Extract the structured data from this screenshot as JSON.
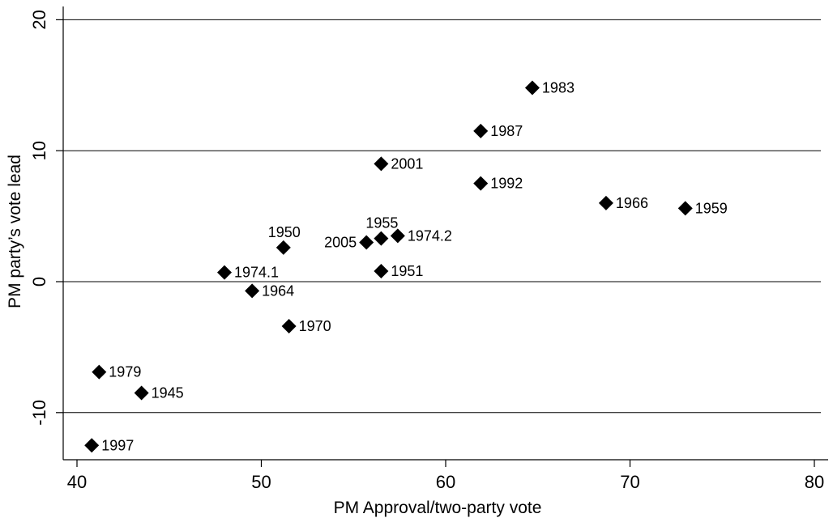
{
  "chart_data": {
    "type": "scatter",
    "title": "",
    "xlabel": "PM Approval/two-party vote",
    "ylabel": "PM party’s vote lead",
    "xlim": [
      39.5,
      80.5
    ],
    "ylim": [
      -13.5,
      21
    ],
    "xticks": [
      40,
      50,
      60,
      70,
      80
    ],
    "yticks": [
      -10,
      0,
      10,
      20
    ],
    "grid": "horizontal",
    "marker": "diamond",
    "marker_color": "#000000",
    "points": [
      {
        "label": "1983",
        "x": 64.7,
        "y": 14.8,
        "label_pos": "right"
      },
      {
        "label": "1987",
        "x": 61.9,
        "y": 11.5,
        "label_pos": "right"
      },
      {
        "label": "2001",
        "x": 56.5,
        "y": 9.0,
        "label_pos": "right"
      },
      {
        "label": "1992",
        "x": 61.9,
        "y": 7.5,
        "label_pos": "right"
      },
      {
        "label": "1966",
        "x": 68.7,
        "y": 6.0,
        "label_pos": "right"
      },
      {
        "label": "1959",
        "x": 73.0,
        "y": 5.6,
        "label_pos": "right"
      },
      {
        "label": "1955",
        "x": 56.5,
        "y": 3.3,
        "label_pos": "above"
      },
      {
        "label": "1974.2",
        "x": 57.4,
        "y": 3.5,
        "label_pos": "right"
      },
      {
        "label": "2005",
        "x": 55.7,
        "y": 3.0,
        "label_pos": "left"
      },
      {
        "label": "1950",
        "x": 51.2,
        "y": 2.6,
        "label_pos": "above"
      },
      {
        "label": "1951",
        "x": 56.5,
        "y": 0.8,
        "label_pos": "right"
      },
      {
        "label": "1974.1",
        "x": 48.0,
        "y": 0.7,
        "label_pos": "right"
      },
      {
        "label": "1964",
        "x": 49.5,
        "y": -0.7,
        "label_pos": "right"
      },
      {
        "label": "1970",
        "x": 51.5,
        "y": -3.4,
        "label_pos": "right"
      },
      {
        "label": "1979",
        "x": 41.2,
        "y": -6.9,
        "label_pos": "right"
      },
      {
        "label": "1945",
        "x": 43.5,
        "y": -8.5,
        "label_pos": "right"
      },
      {
        "label": "1997",
        "x": 40.8,
        "y": -12.5,
        "label_pos": "right"
      }
    ]
  }
}
